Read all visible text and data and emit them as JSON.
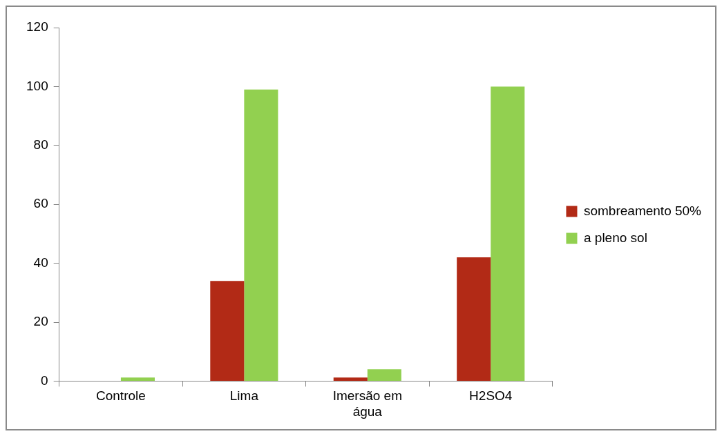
{
  "chart_data": {
    "type": "bar",
    "categories": [
      "Controle",
      "Lima",
      "Imersão em água",
      "H2SO4"
    ],
    "series": [
      {
        "name": "sombreamento 50%",
        "color": "#b22a16",
        "values": [
          0,
          34,
          1.2,
          42
        ]
      },
      {
        "name": "a pleno sol",
        "color": "#92d050",
        "values": [
          1.2,
          99,
          4,
          100
        ]
      }
    ],
    "ylim": [
      0,
      120
    ],
    "yticks": [
      0,
      20,
      40,
      60,
      80,
      100,
      120
    ],
    "grid": false,
    "legend": "right"
  }
}
